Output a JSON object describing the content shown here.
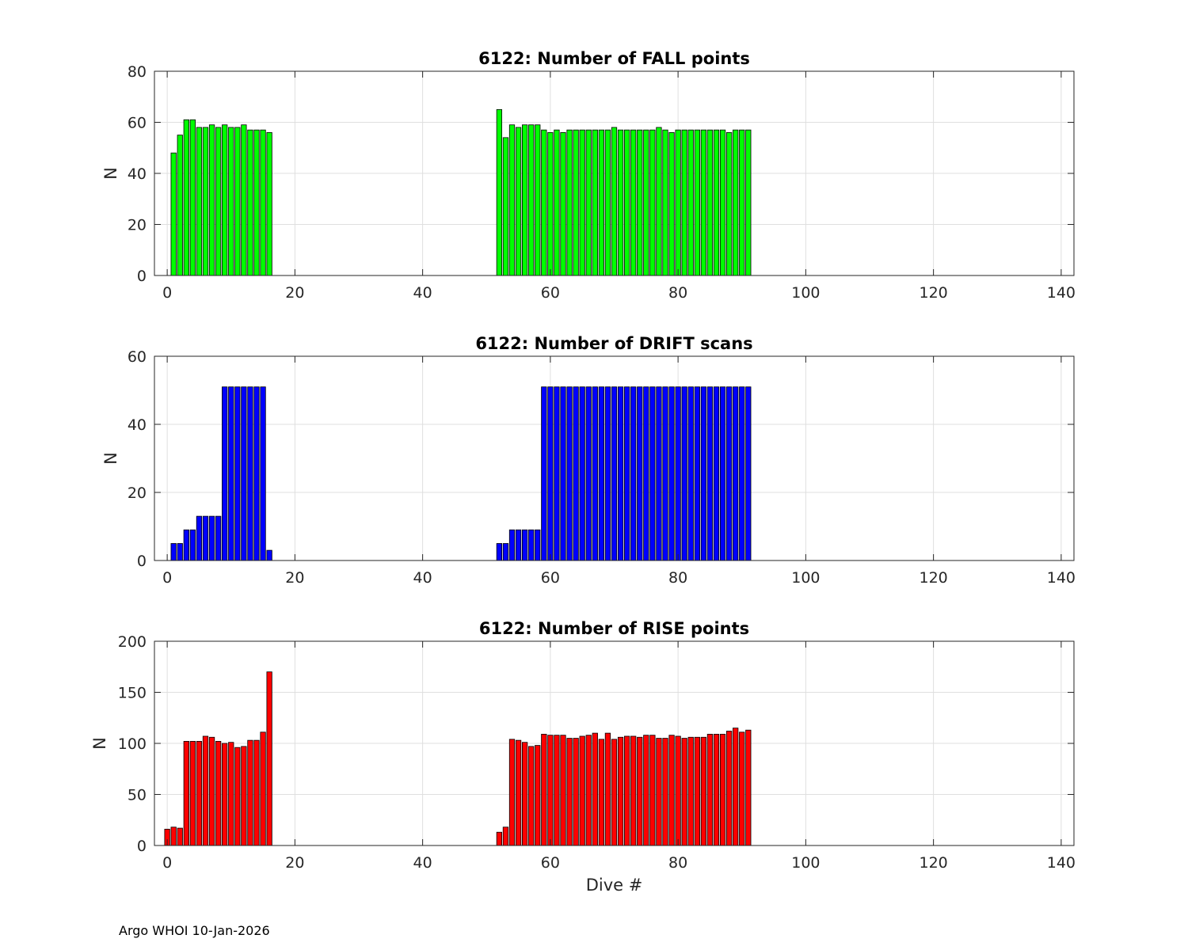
{
  "chart_data": [
    {
      "type": "bar",
      "title": "6122: Number of FALL points",
      "xlabel": "",
      "ylabel": "N",
      "xlim": [
        -2,
        142
      ],
      "ylim": [
        0,
        80
      ],
      "xticks": [
        0,
        20,
        40,
        60,
        80,
        100,
        120,
        140
      ],
      "yticks": [
        0,
        20,
        40,
        60,
        80
      ],
      "grid": true,
      "color": "#00ff00",
      "x": [
        1,
        2,
        3,
        4,
        5,
        6,
        7,
        8,
        9,
        10,
        11,
        12,
        13,
        14,
        15,
        16,
        52,
        53,
        54,
        55,
        56,
        57,
        58,
        59,
        60,
        61,
        62,
        63,
        64,
        65,
        66,
        67,
        68,
        69,
        70,
        71,
        72,
        73,
        74,
        75,
        76,
        77,
        78,
        79,
        80,
        81,
        82,
        83,
        84,
        85,
        86,
        87,
        88,
        89,
        90,
        91
      ],
      "values": [
        48,
        55,
        61,
        61,
        58,
        58,
        59,
        58,
        59,
        58,
        58,
        59,
        57,
        57,
        57,
        56,
        65,
        54,
        59,
        58,
        59,
        59,
        59,
        57,
        56,
        57,
        56,
        57,
        57,
        57,
        57,
        57,
        57,
        57,
        58,
        57,
        57,
        57,
        57,
        57,
        57,
        58,
        57,
        56,
        57,
        57,
        57,
        57,
        57,
        57,
        57,
        57,
        56,
        57,
        57,
        57
      ]
    },
    {
      "type": "bar",
      "title": "6122: Number of DRIFT scans",
      "xlabel": "",
      "ylabel": "N",
      "xlim": [
        -2,
        142
      ],
      "ylim": [
        0,
        60
      ],
      "xticks": [
        0,
        20,
        40,
        60,
        80,
        100,
        120,
        140
      ],
      "yticks": [
        0,
        20,
        40,
        60
      ],
      "grid": true,
      "color": "#0000ff",
      "x": [
        1,
        2,
        3,
        4,
        5,
        6,
        7,
        8,
        9,
        10,
        11,
        12,
        13,
        14,
        15,
        16,
        52,
        53,
        54,
        55,
        56,
        57,
        58,
        59,
        60,
        61,
        62,
        63,
        64,
        65,
        66,
        67,
        68,
        69,
        70,
        71,
        72,
        73,
        74,
        75,
        76,
        77,
        78,
        79,
        80,
        81,
        82,
        83,
        84,
        85,
        86,
        87,
        88,
        89,
        90,
        91
      ],
      "values": [
        5,
        5,
        9,
        9,
        13,
        13,
        13,
        13,
        51,
        51,
        51,
        51,
        51,
        51,
        51,
        3,
        5,
        5,
        9,
        9,
        9,
        9,
        9,
        51,
        51,
        51,
        51,
        51,
        51,
        51,
        51,
        51,
        51,
        51,
        51,
        51,
        51,
        51,
        51,
        51,
        51,
        51,
        51,
        51,
        51,
        51,
        51,
        51,
        51,
        51,
        51,
        51,
        51,
        51,
        51,
        51
      ]
    },
    {
      "type": "bar",
      "title": "6122: Number of RISE points",
      "xlabel": "Dive #",
      "ylabel": "N",
      "xlim": [
        -2,
        142
      ],
      "ylim": [
        0,
        200
      ],
      "xticks": [
        0,
        20,
        40,
        60,
        80,
        100,
        120,
        140
      ],
      "yticks": [
        0,
        50,
        100,
        150,
        200
      ],
      "grid": true,
      "color": "#ff0000",
      "x": [
        0,
        1,
        2,
        3,
        4,
        5,
        6,
        7,
        8,
        9,
        10,
        11,
        12,
        13,
        14,
        15,
        16,
        52,
        53,
        54,
        55,
        56,
        57,
        58,
        59,
        60,
        61,
        62,
        63,
        64,
        65,
        66,
        67,
        68,
        69,
        70,
        71,
        72,
        73,
        74,
        75,
        76,
        77,
        78,
        79,
        80,
        81,
        82,
        83,
        84,
        85,
        86,
        87,
        88,
        89,
        90,
        91
      ],
      "values": [
        16,
        18,
        17,
        102,
        102,
        102,
        107,
        106,
        102,
        100,
        101,
        96,
        97,
        103,
        103,
        111,
        170,
        13,
        18,
        104,
        103,
        101,
        97,
        98,
        109,
        108,
        108,
        108,
        105,
        105,
        107,
        108,
        110,
        104,
        110,
        104,
        106,
        107,
        107,
        106,
        108,
        108,
        105,
        105,
        108,
        107,
        105,
        106,
        106,
        106,
        109,
        109,
        109,
        112,
        115,
        111,
        113
      ]
    }
  ],
  "footer": "Argo WHOI 10-Jan-2026"
}
